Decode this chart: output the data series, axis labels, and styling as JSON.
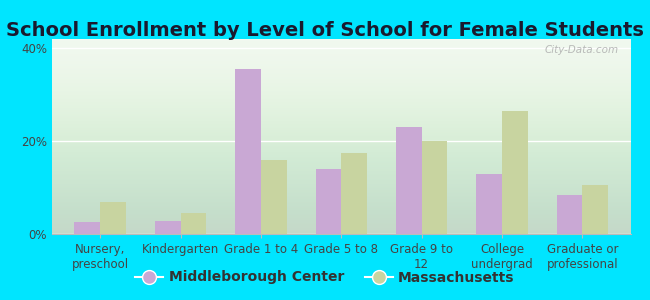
{
  "title": "School Enrollment by Level of School for Female Students",
  "categories": [
    "Nursery,\npreschool",
    "Kindergarten",
    "Grade 1 to 4",
    "Grade 5 to 8",
    "Grade 9 to\n12",
    "College\nundergrad",
    "Graduate or\nprofessional"
  ],
  "middleborough": [
    2.5,
    2.8,
    35.5,
    14.0,
    23.0,
    13.0,
    8.5
  ],
  "massachusetts": [
    7.0,
    4.5,
    16.0,
    17.5,
    20.0,
    26.5,
    10.5
  ],
  "color_mid": "#c9a8d4",
  "color_mass": "#c8d4a0",
  "background_fig": "#00e5ff",
  "ylim": [
    0,
    42
  ],
  "yticks": [
    0,
    20,
    40
  ],
  "ytick_labels": [
    "0%",
    "20%",
    "40%"
  ],
  "legend_mid": "Middleborough Center",
  "legend_mass": "Massachusetts",
  "title_fontsize": 14,
  "tick_fontsize": 8.5,
  "legend_fontsize": 10,
  "bar_width": 0.32
}
